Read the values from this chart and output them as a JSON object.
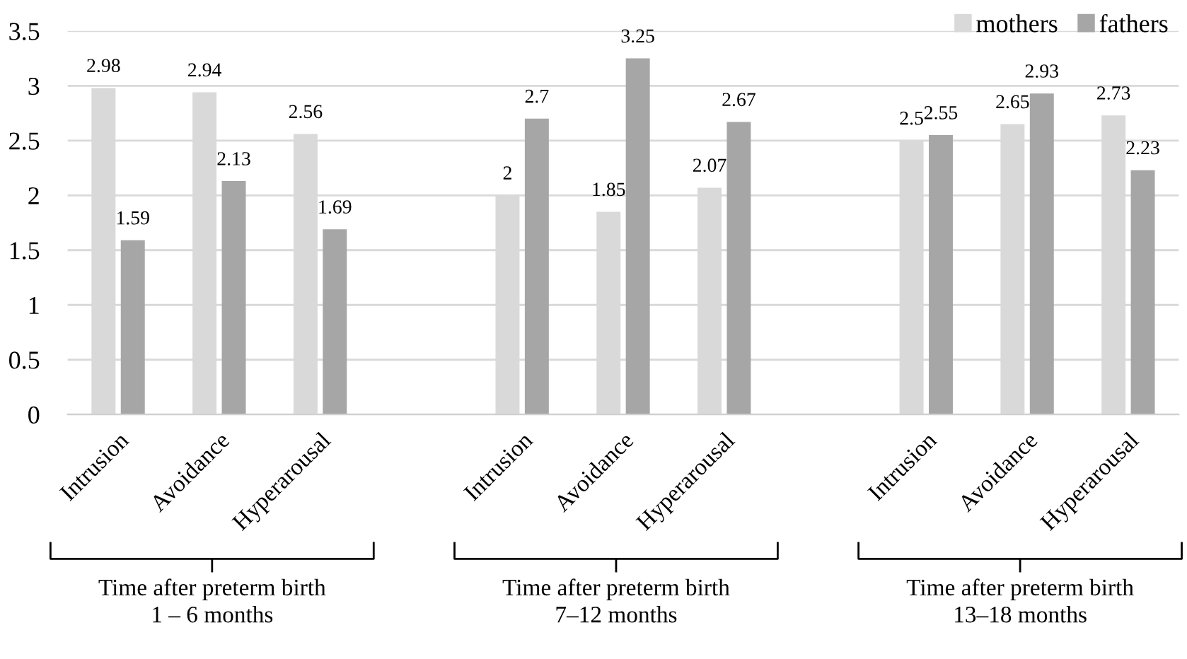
{
  "chart_data": {
    "type": "bar",
    "categories": [
      "Intrusion",
      "Avoidance",
      "Hyperarousal",
      null,
      "Intrusion",
      "Avoidance",
      "Hyperarousal",
      null,
      "Intrusion",
      "Avoidance",
      "Hyperarousal"
    ],
    "series": [
      {
        "name": "mothers",
        "color": "#d9d9d9",
        "values": [
          2.98,
          2.94,
          2.56,
          null,
          2,
          1.85,
          2.07,
          null,
          2.5,
          2.65,
          2.73
        ]
      },
      {
        "name": "fathers",
        "color": "#a6a6a6",
        "values": [
          1.59,
          2.13,
          1.69,
          null,
          2.7,
          3.25,
          2.67,
          null,
          2.55,
          2.93,
          2.23
        ]
      }
    ],
    "ylim": [
      0,
      3.5
    ],
    "yticks": [
      0,
      0.5,
      1,
      1.5,
      2,
      2.5,
      3,
      3.5
    ],
    "data_labels": true,
    "grid": "y",
    "legend": "top right",
    "annotations": [
      "Time after preterm birth\n1 – 6 months",
      "Time after preterm birth\n7–12 months",
      "Time after preterm birth\n13–18 months"
    ]
  }
}
